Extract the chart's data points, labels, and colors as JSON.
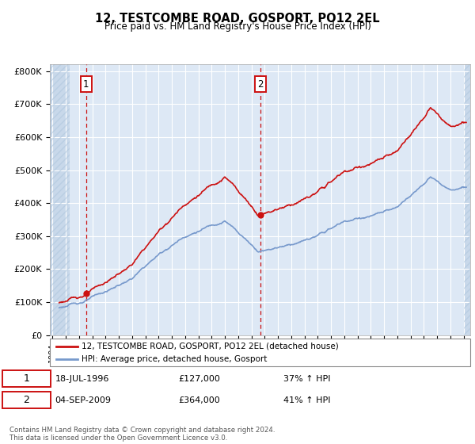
{
  "title": "12, TESTCOMBE ROAD, GOSPORT, PO12 2EL",
  "subtitle": "Price paid vs. HM Land Registry's House Price Index (HPI)",
  "hpi_color": "#7799cc",
  "price_color": "#cc1111",
  "background_plot": "#dde8f5",
  "ylim": [
    0,
    820000
  ],
  "yticks": [
    0,
    100000,
    200000,
    300000,
    400000,
    500000,
    600000,
    700000,
    800000
  ],
  "ytick_labels": [
    "£0",
    "£100K",
    "£200K",
    "£300K",
    "£400K",
    "£500K",
    "£600K",
    "£700K",
    "£800K"
  ],
  "xlim_start": 1993.8,
  "xlim_end": 2025.5,
  "hatch_end": 1995.3,
  "hatch_start_right": 2025.0,
  "sale1_date": 1996.54,
  "sale1_price": 127000,
  "sale2_date": 2009.67,
  "sale2_price": 364000,
  "legend_line1": "12, TESTCOMBE ROAD, GOSPORT, PO12 2EL (detached house)",
  "legend_line2": "HPI: Average price, detached house, Gosport",
  "annotation1_date": "18-JUL-1996",
  "annotation1_price": "£127,000",
  "annotation1_hpi": "37% ↑ HPI",
  "annotation2_date": "04-SEP-2009",
  "annotation2_price": "£364,000",
  "annotation2_hpi": "41% ↑ HPI",
  "footer": "Contains HM Land Registry data © Crown copyright and database right 2024.\nThis data is licensed under the Open Government Licence v3.0."
}
